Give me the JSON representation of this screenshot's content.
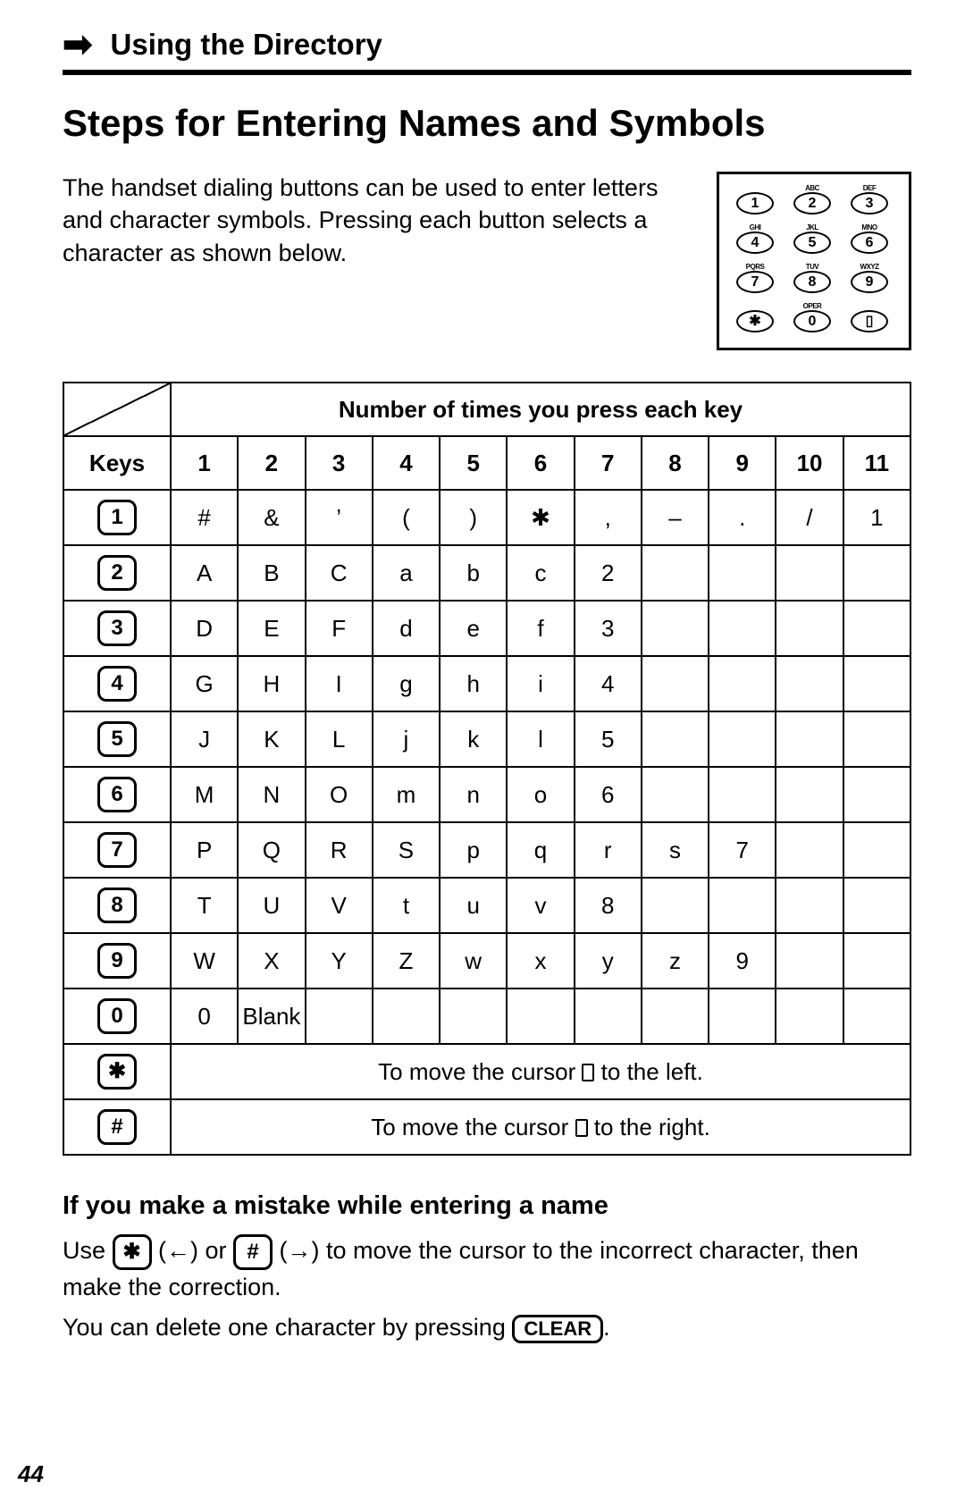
{
  "header": {
    "section_title": "Using the Directory"
  },
  "title": "Steps for Entering Names and Symbols",
  "intro": "The handset dialing buttons can be used to enter letters and character symbols. Pressing each button selects a character as shown below.",
  "keypad": [
    {
      "sup": "",
      "num": "1",
      "sub": ""
    },
    {
      "sup": "ABC",
      "num": "2",
      "sub": ""
    },
    {
      "sup": "DEF",
      "num": "3",
      "sub": ""
    },
    {
      "sup": "GHI",
      "num": "4",
      "sub": ""
    },
    {
      "sup": "JKL",
      "num": "5",
      "sub": ""
    },
    {
      "sup": "MNO",
      "num": "6",
      "sub": ""
    },
    {
      "sup": "PQRS",
      "num": "7",
      "sub": ""
    },
    {
      "sup": "TUV",
      "num": "8",
      "sub": ""
    },
    {
      "sup": "WXYZ",
      "num": "9",
      "sub": ""
    },
    {
      "sup": "",
      "num": "✱",
      "sub": ""
    },
    {
      "sup": "OPER",
      "num": "0",
      "sub": ""
    },
    {
      "sup": "",
      "num": "▯",
      "sub": ""
    }
  ],
  "table": {
    "span_header": "Number of times you press each key",
    "keys_label": "Keys",
    "col_headers": [
      "1",
      "2",
      "3",
      "4",
      "5",
      "6",
      "7",
      "8",
      "9",
      "10",
      "11"
    ],
    "rows": [
      {
        "key": "1",
        "cells": [
          "#",
          "&",
          "’",
          "(",
          ")",
          "✱",
          ",",
          "–",
          ".",
          "/",
          "1"
        ]
      },
      {
        "key": "2",
        "cells": [
          "A",
          "B",
          "C",
          "a",
          "b",
          "c",
          "2",
          "",
          "",
          "",
          ""
        ]
      },
      {
        "key": "3",
        "cells": [
          "D",
          "E",
          "F",
          "d",
          "e",
          "f",
          "3",
          "",
          "",
          "",
          ""
        ]
      },
      {
        "key": "4",
        "cells": [
          "G",
          "H",
          "I",
          "g",
          "h",
          "i",
          "4",
          "",
          "",
          "",
          ""
        ]
      },
      {
        "key": "5",
        "cells": [
          "J",
          "K",
          "L",
          "j",
          "k",
          "l",
          "5",
          "",
          "",
          "",
          ""
        ]
      },
      {
        "key": "6",
        "cells": [
          "M",
          "N",
          "O",
          "m",
          "n",
          "o",
          "6",
          "",
          "",
          "",
          ""
        ]
      },
      {
        "key": "7",
        "cells": [
          "P",
          "Q",
          "R",
          "S",
          "p",
          "q",
          "r",
          "s",
          "7",
          "",
          ""
        ]
      },
      {
        "key": "8",
        "cells": [
          "T",
          "U",
          "V",
          "t",
          "u",
          "v",
          "8",
          "",
          "",
          "",
          ""
        ]
      },
      {
        "key": "9",
        "cells": [
          "W",
          "X",
          "Y",
          "Z",
          "w",
          "x",
          "y",
          "z",
          "9",
          "",
          ""
        ]
      },
      {
        "key": "0",
        "cells": [
          "0",
          "Blank",
          "",
          "",
          "",
          "",
          "",
          "",
          "",
          "",
          ""
        ]
      }
    ],
    "star_row": {
      "key": "✱",
      "text_before": "To move the cursor ",
      "text_after": " to the left."
    },
    "hash_row": {
      "key": "#",
      "text_before": "To move the cursor ",
      "text_after": " to the right."
    }
  },
  "mistake": {
    "title": "If you make a mistake while entering a name",
    "line1_a": "Use ",
    "line1_star": "✱",
    "line1_b": " (←) or ",
    "line1_hash": "#",
    "line1_c": " (→) to move the cursor to the incorrect character, then make the correction.",
    "line2_a": "You can delete one character by pressing ",
    "line2_clear": "CLEAR",
    "line2_b": "."
  },
  "page_number": "44",
  "colors": {
    "text": "#000000",
    "bg": "#ffffff"
  }
}
